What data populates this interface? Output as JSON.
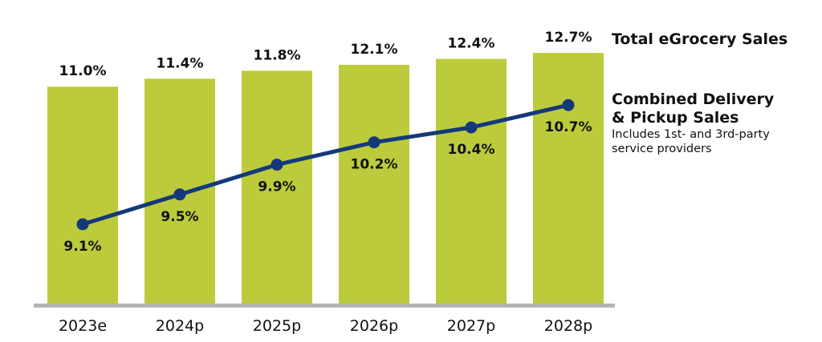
{
  "chart_data": {
    "type": "bar",
    "categories": [
      "2023e",
      "2024p",
      "2025p",
      "2026p",
      "2027p",
      "2028p"
    ],
    "series": [
      {
        "name": "Total eGrocery Sales",
        "type": "bar",
        "values": [
          11.0,
          11.4,
          11.8,
          12.1,
          12.4,
          12.7
        ],
        "labels": [
          "11.0%",
          "11.4%",
          "11.8%",
          "12.1%",
          "12.4%",
          "12.7%"
        ],
        "color": "#bccb3c"
      },
      {
        "name": "Combined Delivery & Pickup Sales",
        "type": "line",
        "values": [
          9.1,
          9.5,
          9.9,
          10.2,
          10.4,
          10.7
        ],
        "labels": [
          "9.1%",
          "9.5%",
          "9.9%",
          "10.2%",
          "10.4%",
          "10.7%"
        ],
        "color": "#14397a"
      }
    ],
    "legend": {
      "bar_title": "Total eGrocery Sales",
      "line_title_1": "Combined Delivery",
      "line_title_2": "& Pickup Sales",
      "line_note_1": "Includes 1st- and 3rd-party",
      "line_note_2": "service providers",
      "placement": "right"
    },
    "axis_color": "#b3b3b3",
    "grid": false
  }
}
